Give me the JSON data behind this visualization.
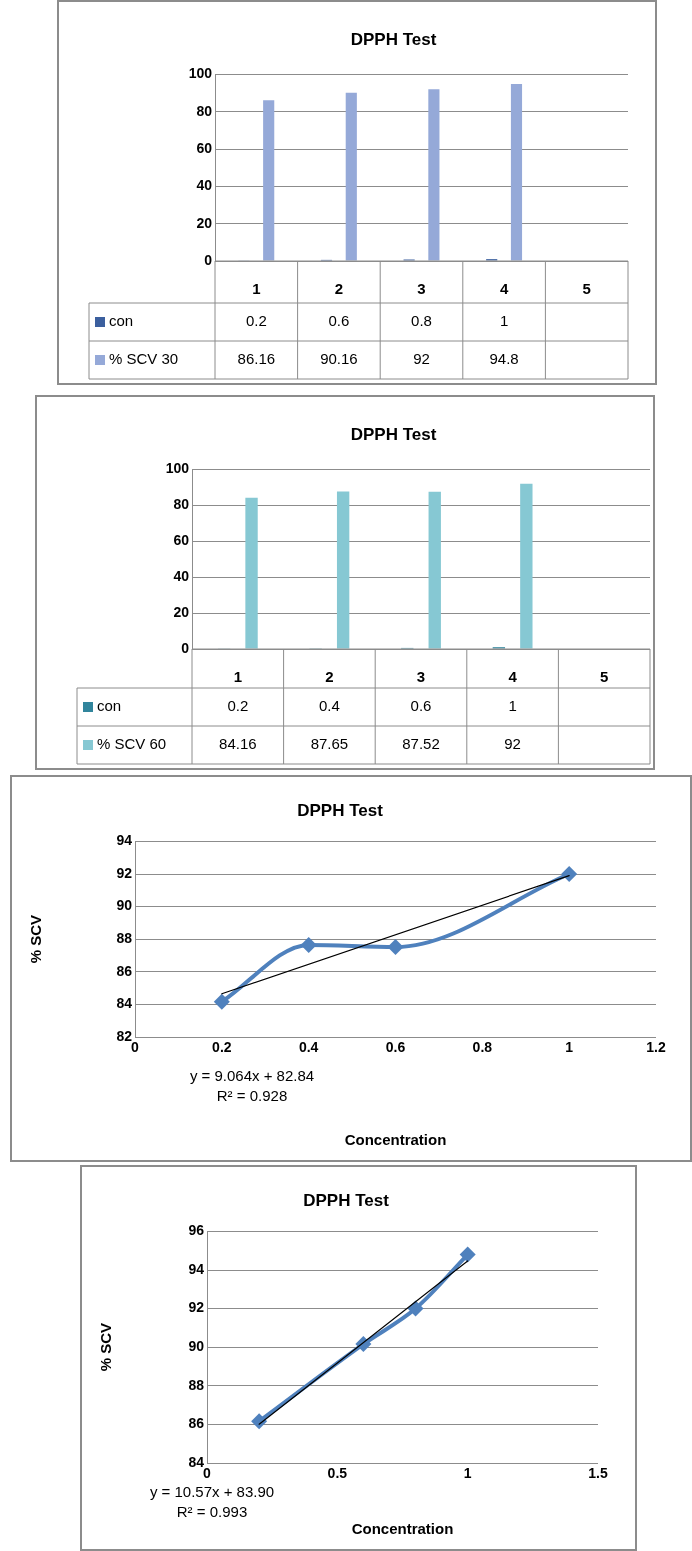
{
  "chart_data": [
    {
      "type": "bar",
      "title": "DPPH Test",
      "categories": [
        "1",
        "2",
        "3",
        "4",
        "5"
      ],
      "series": [
        {
          "name": "con",
          "color": "#3b5f9e",
          "values": [
            0.2,
            0.6,
            0.8,
            1,
            null
          ]
        },
        {
          "name": "% SCV 30",
          "color": "#95a9d8",
          "values": [
            86.16,
            90.16,
            92,
            94.8,
            null
          ]
        }
      ],
      "ylim": [
        0,
        100
      ],
      "yticks": [
        0,
        20,
        40,
        60,
        80,
        100
      ],
      "grid": "y",
      "legend": "bottom",
      "data_labels": true
    },
    {
      "type": "bar",
      "title": "DPPH Test",
      "categories": [
        "1",
        "2",
        "3",
        "4",
        "5"
      ],
      "series": [
        {
          "name": "con",
          "color": "#31859c",
          "values": [
            0.2,
            0.4,
            0.6,
            1,
            null
          ]
        },
        {
          "name": "% SCV 60",
          "color": "#86c8d3",
          "values": [
            84.16,
            87.65,
            87.52,
            92,
            null
          ]
        }
      ],
      "ylim": [
        0,
        100
      ],
      "yticks": [
        0,
        20,
        40,
        60,
        80,
        100
      ],
      "grid": "y",
      "legend": "bottom",
      "data_labels": true
    },
    {
      "type": "line",
      "title": "DPPH Test",
      "xlabel": "Concentration",
      "ylabel": "% SCV",
      "series": [
        {
          "color": "#4f81bd",
          "x": [
            0.2,
            0.4,
            0.6,
            1
          ],
          "values": [
            84.16,
            87.65,
            87.52,
            92
          ],
          "marker": "diamond"
        },
        {
          "color": "#000000",
          "x": [
            0.2,
            1
          ],
          "values": [
            84.65,
            91.9
          ],
          "marker": "none"
        }
      ],
      "xlim": [
        0,
        1.2
      ],
      "xticks": [
        0,
        0.2,
        0.4,
        0.6,
        0.8,
        1,
        1.2
      ],
      "ylim": [
        82,
        94
      ],
      "yticks": [
        82,
        84,
        86,
        88,
        90,
        92,
        94
      ],
      "grid": "y",
      "annotations": [
        "y = 9.064x + 82.84",
        "R² = 0.928"
      ]
    },
    {
      "type": "line",
      "title": "DPPH Test",
      "xlabel": "Concentration",
      "ylabel": "% SCV",
      "series": [
        {
          "color": "#4f81bd",
          "x": [
            0.2,
            0.6,
            0.8,
            1
          ],
          "values": [
            86.16,
            90.16,
            92,
            94.8
          ],
          "marker": "diamond"
        },
        {
          "color": "#000000",
          "x": [
            0.2,
            1
          ],
          "values": [
            86.01,
            94.47
          ],
          "marker": "none"
        }
      ],
      "xlim": [
        0,
        1.5
      ],
      "xticks": [
        0,
        0.5,
        1,
        1.5
      ],
      "ylim": [
        84,
        96
      ],
      "yticks": [
        84,
        86,
        88,
        90,
        92,
        94,
        96
      ],
      "grid": "y",
      "annotations": [
        "y = 10.57x + 83.90",
        "R² = 0.993"
      ]
    }
  ]
}
